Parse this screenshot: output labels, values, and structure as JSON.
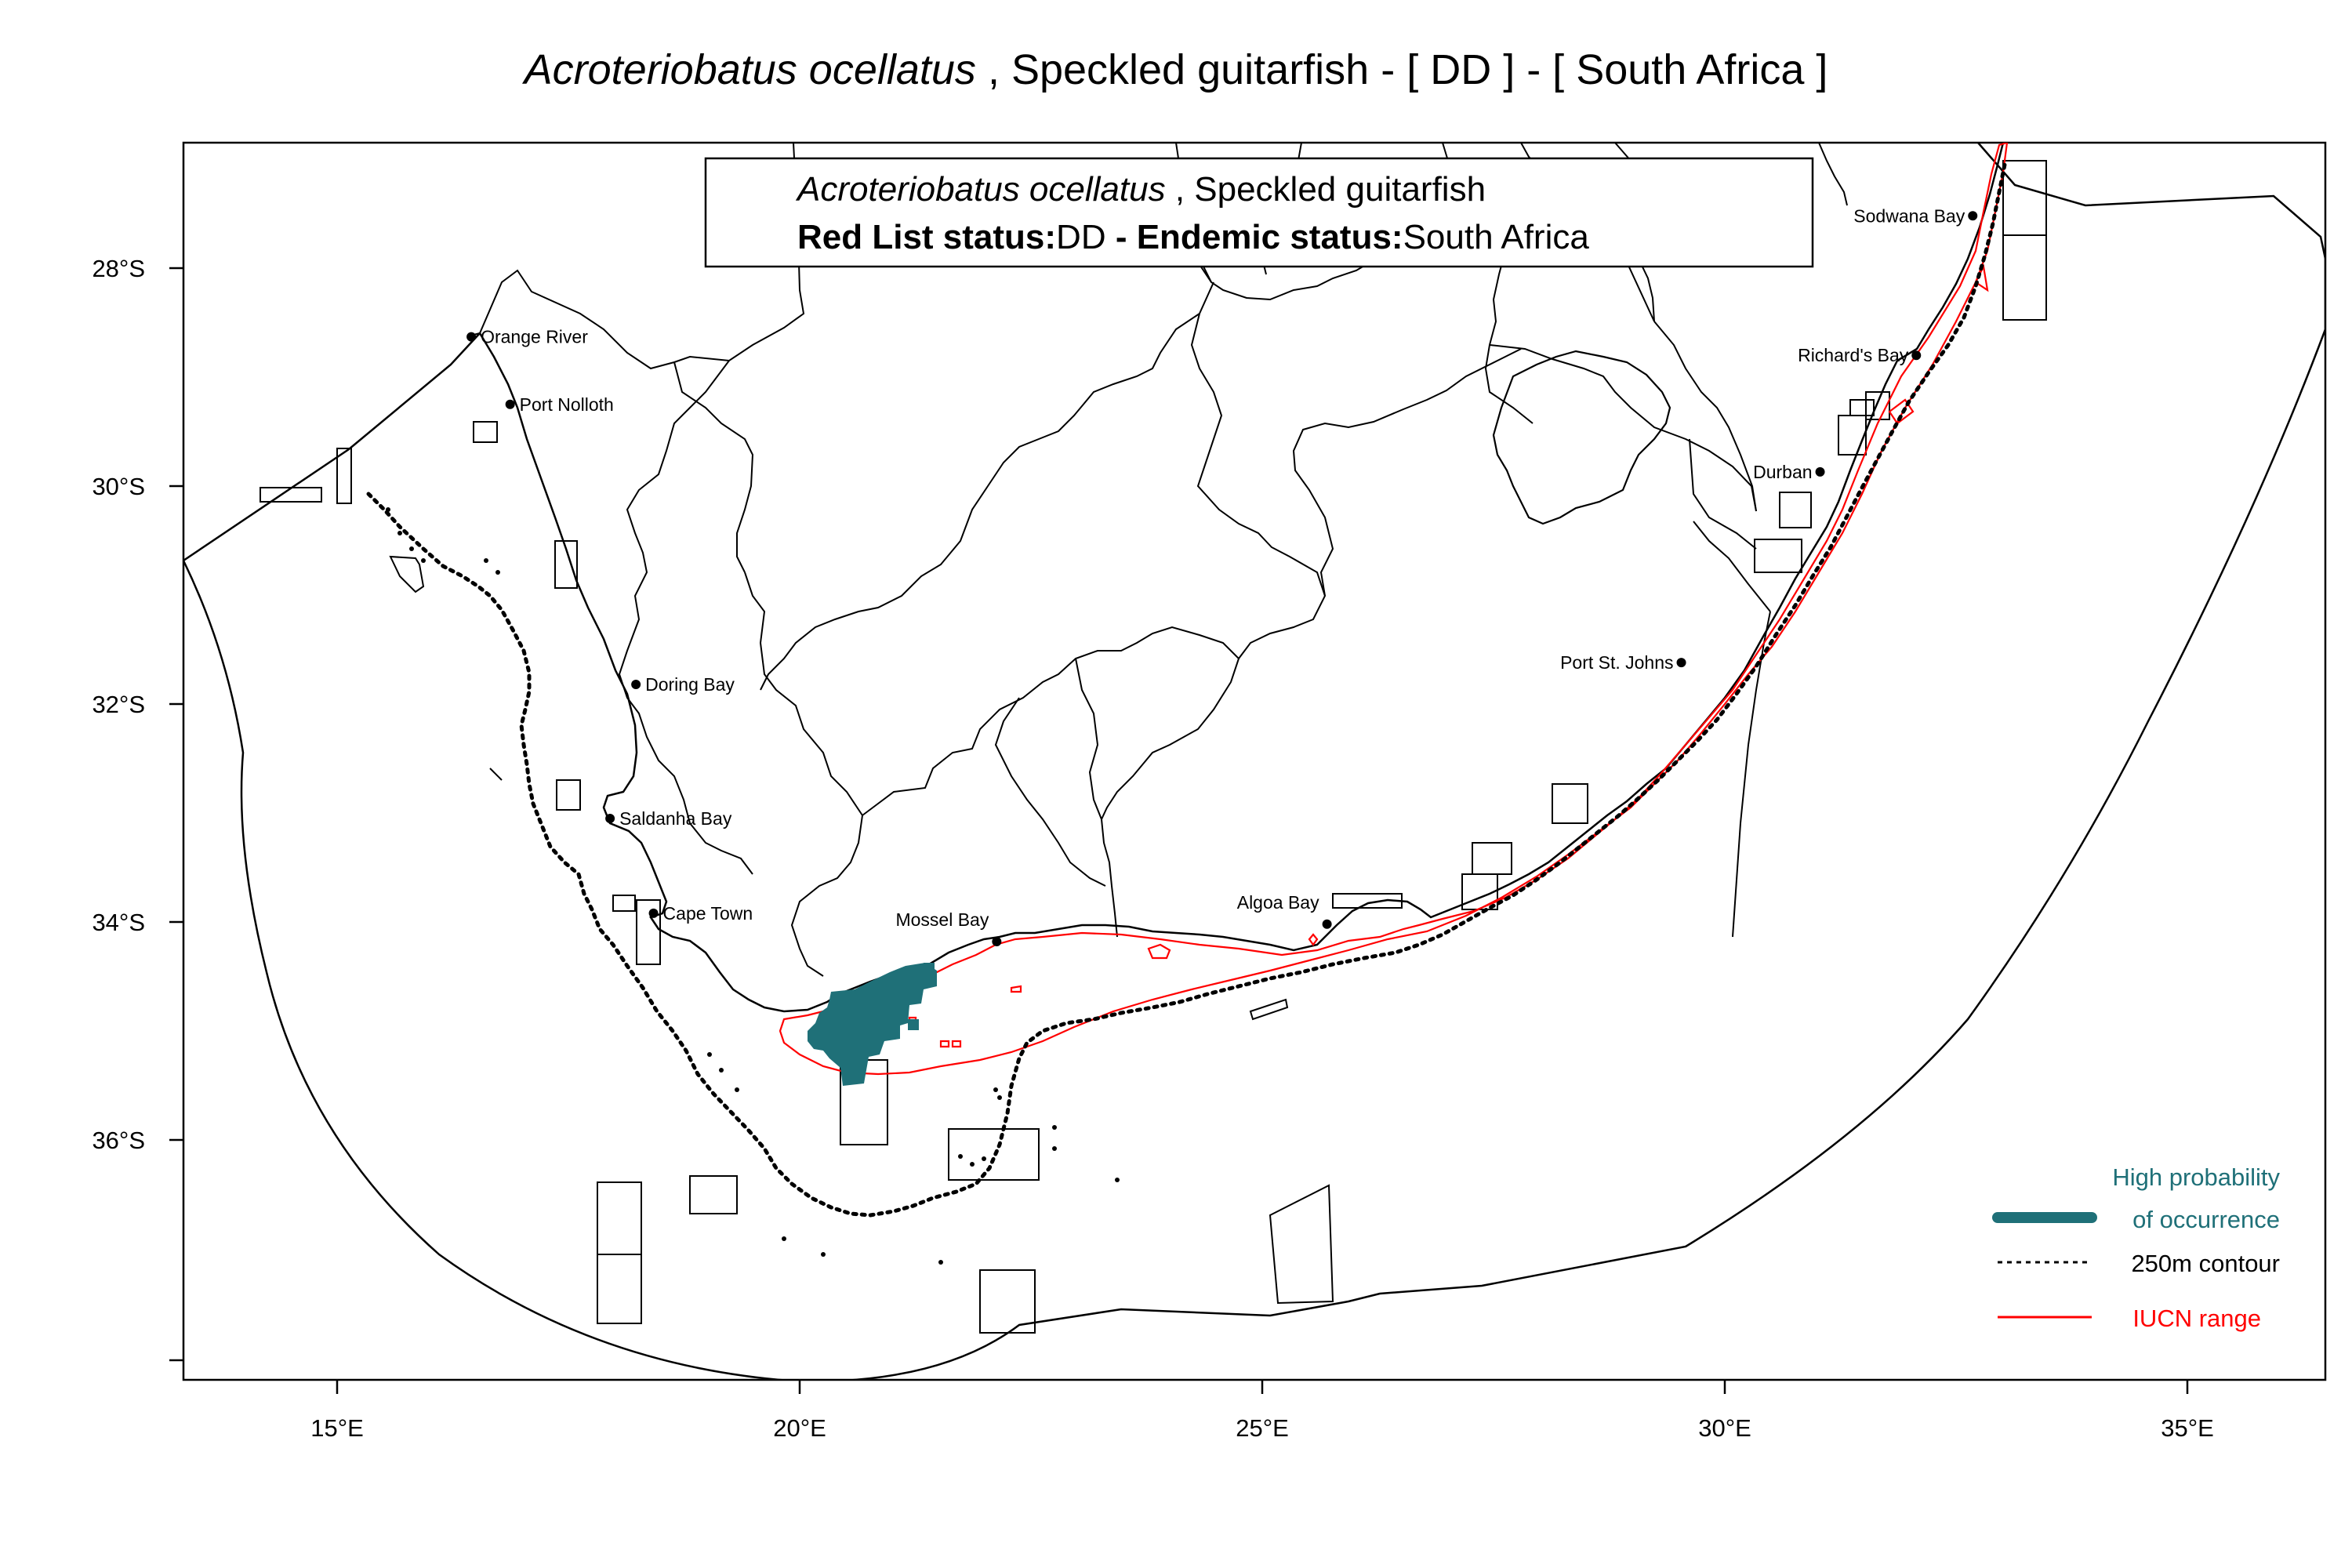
{
  "title": {
    "scientific_name": "Acroteriobatus ocellatus",
    "rest": " , Speckled guitarfish  - [ DD ] - [ South Africa ]"
  },
  "info_box": {
    "scientific_name": "Acroteriobatus ocellatus",
    "common_name": " , Speckled guitarfish",
    "redlist_label": "Red List status:",
    "redlist_value": "DD",
    "endemic_label": " - Endemic status:",
    "endemic_value": "South Africa"
  },
  "axes": {
    "lon_ticks": [
      "15°E",
      "20°E",
      "25°E",
      "30°E",
      "35°E"
    ],
    "lat_ticks": [
      "28°S",
      "30°S",
      "32°S",
      "34°S",
      "36°S"
    ]
  },
  "places": [
    {
      "name": "Orange River",
      "lon": 16.45,
      "lat": -28.63
    },
    {
      "name": "Port Nolloth",
      "lon": 16.87,
      "lat": -29.25
    },
    {
      "name": "Doring Bay",
      "lon": 18.23,
      "lat": -31.82
    },
    {
      "name": "Saldanha Bay",
      "lon": 17.95,
      "lat": -33.05
    },
    {
      "name": "Cape Town",
      "lon": 18.42,
      "lat": -33.92
    },
    {
      "name": "Mossel Bay",
      "lon": 22.13,
      "lat": -34.18
    },
    {
      "name": "Algoa Bay",
      "lon": 25.7,
      "lat": -34.02
    },
    {
      "name": "Port St. Johns",
      "lon": 29.53,
      "lat": -31.62
    },
    {
      "name": "Durban",
      "lon": 31.03,
      "lat": -29.87
    },
    {
      "name": "Richard's Bay",
      "lon": 32.07,
      "lat": -28.8
    },
    {
      "name": "Sodwana Bay",
      "lon": 32.68,
      "lat": -27.52
    }
  ],
  "legend": {
    "high_prob_line1": "High probability",
    "high_prob_line2": "of occurrence",
    "contour": "250m contour",
    "iucn": "IUCN range"
  },
  "colors": {
    "occurrence": "#1f7078",
    "iucn": "#ff0000",
    "lines": "#000000"
  }
}
